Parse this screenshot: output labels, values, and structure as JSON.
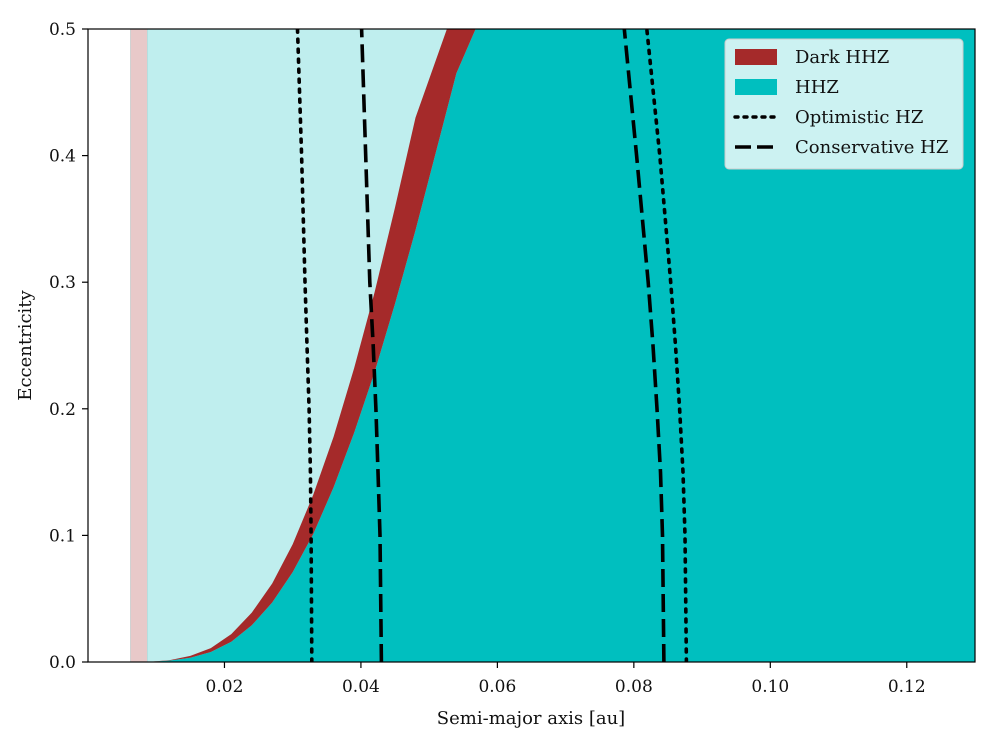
{
  "chart_data": {
    "type": "area",
    "xlabel": "Semi-major axis [au]",
    "ylabel": "Eccentricity",
    "xlim": [
      0.0,
      0.13
    ],
    "ylim": [
      0.0,
      0.5
    ],
    "xticks": [
      0.02,
      0.04,
      0.06,
      0.08,
      0.1,
      0.12
    ],
    "xtick_labels": [
      "0.02",
      "0.04",
      "0.06",
      "0.08",
      "0.10",
      "0.12"
    ],
    "yticks": [
      0.0,
      0.1,
      0.2,
      0.3,
      0.4,
      0.5
    ],
    "ytick_labels": [
      "0.0",
      "0.1",
      "0.2",
      "0.3",
      "0.4",
      "0.5"
    ],
    "grid": false,
    "legend_position": "top-right",
    "legend": [
      {
        "label": "Dark HHZ",
        "kind": "patch",
        "color": "#a52a2a"
      },
      {
        "label": "HHZ",
        "kind": "patch",
        "color": "#00bfbf"
      },
      {
        "label": "Optimistic HZ",
        "kind": "dotted",
        "color": "#000000"
      },
      {
        "label": "Conservative HZ",
        "kind": "dashed",
        "color": "#000000"
      }
    ],
    "colors": {
      "hhz": "#00bfbf",
      "hhz_light": "#bfeeee",
      "dark_hhz": "#a52a2a",
      "roche_band": "#e8c9c9",
      "line": "#000000"
    },
    "regions": {
      "roche_band_a": [
        0.0062,
        0.0087
      ],
      "light_region_start_a": 0.0087,
      "hhz_boundary_start_a": 0.0087
    },
    "series": [
      {
        "id": "hhz_inner_edge",
        "x": [
          0.0087,
          0.012,
          0.015,
          0.018,
          0.021,
          0.024,
          0.027,
          0.03,
          0.033,
          0.036,
          0.039,
          0.042,
          0.045,
          0.048,
          0.051,
          0.054,
          0.0568
        ],
        "y": [
          0.0,
          0.0012,
          0.0034,
          0.0079,
          0.016,
          0.029,
          0.047,
          0.071,
          0.101,
          0.138,
          0.181,
          0.229,
          0.283,
          0.341,
          0.403,
          0.465,
          0.5
        ]
      },
      {
        "id": "dark_hhz_inner_edge",
        "x": [
          0.0087,
          0.012,
          0.015,
          0.018,
          0.021,
          0.024,
          0.027,
          0.03,
          0.033,
          0.036,
          0.039,
          0.042,
          0.045,
          0.048,
          0.0526
        ],
        "y": [
          0.0,
          0.0015,
          0.0048,
          0.011,
          0.022,
          0.039,
          0.062,
          0.093,
          0.132,
          0.178,
          0.232,
          0.292,
          0.359,
          0.43,
          0.5
        ]
      },
      {
        "name": "Optimistic HZ",
        "id": "optimistic_inner",
        "x": [
          0.0328,
          0.0327,
          0.0326,
          0.0324,
          0.0321,
          0.0318,
          0.0313,
          0.0307
        ],
        "y": [
          0.0,
          0.1,
          0.15,
          0.2,
          0.25,
          0.3,
          0.4,
          0.5
        ]
      },
      {
        "name": "Optimistic HZ",
        "id": "optimistic_outer",
        "x": [
          0.0877,
          0.0875,
          0.0872,
          0.0867,
          0.0861,
          0.0854,
          0.0838,
          0.0819
        ],
        "y": [
          0.0,
          0.1,
          0.15,
          0.2,
          0.25,
          0.3,
          0.4,
          0.5
        ]
      },
      {
        "name": "Conservative HZ",
        "id": "conservative_inner",
        "x": [
          0.043,
          0.0428,
          0.0425,
          0.0422,
          0.0418,
          0.0413,
          0.0401
        ],
        "y": [
          0.0,
          0.1,
          0.15,
          0.2,
          0.25,
          0.3,
          0.5
        ]
      },
      {
        "name": "Conservative HZ",
        "id": "conservative_outer",
        "x": [
          0.0844,
          0.0842,
          0.0839,
          0.0834,
          0.0828,
          0.0821,
          0.0804,
          0.0786
        ],
        "y": [
          0.0,
          0.1,
          0.15,
          0.2,
          0.25,
          0.3,
          0.4,
          0.5
        ]
      }
    ]
  }
}
